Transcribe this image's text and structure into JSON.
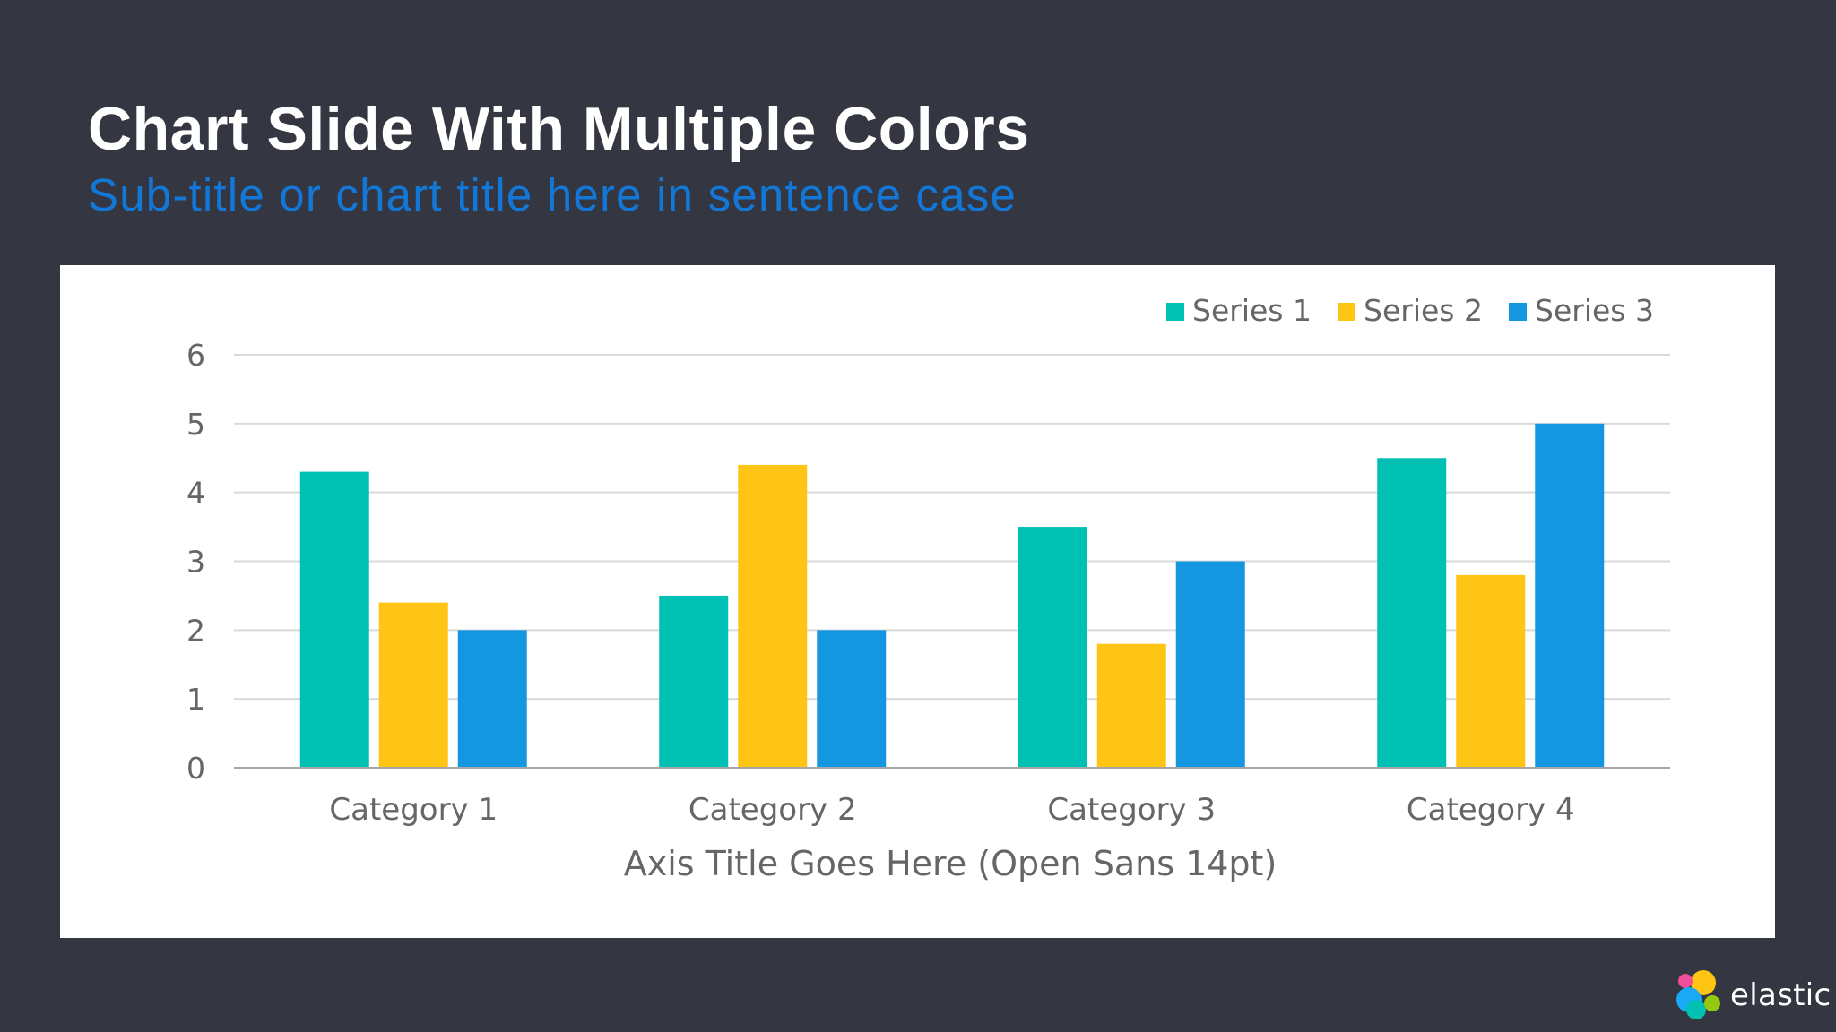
{
  "slide": {
    "title": "Chart Slide With Multiple Colors",
    "subtitle": "Sub-title or chart title here in sentence case"
  },
  "logo": {
    "icon": "elastic-logo-icon",
    "text": "elastic",
    "colors": [
      "#F04E98",
      "#FEC514",
      "#00BFB3",
      "#1BA9F5",
      "#93C90E"
    ]
  },
  "colors": {
    "background": "#343741",
    "title": "#FFFFFF",
    "subtitle": "#1277D6",
    "panel": "#FFFFFF"
  },
  "chart_data": {
    "type": "bar",
    "categories": [
      "Category 1",
      "Category 2",
      "Category 3",
      "Category 4"
    ],
    "series": [
      {
        "name": "Series 1",
        "color": "#00BFB3",
        "values": [
          4.3,
          2.5,
          3.5,
          4.5
        ]
      },
      {
        "name": "Series 2",
        "color": "#FEC514",
        "values": [
          2.4,
          4.4,
          1.8,
          2.8
        ]
      },
      {
        "name": "Series 3",
        "color": "#1497E0",
        "values": [
          2,
          2,
          3,
          5
        ]
      }
    ],
    "xlabel": "Axis Title Goes Here (Open Sans 14pt)",
    "ylabel": "",
    "ylim": [
      0,
      6
    ],
    "yticks": [
      0,
      1,
      2,
      3,
      4,
      5,
      6
    ],
    "grid": true,
    "legend": "top-right"
  }
}
